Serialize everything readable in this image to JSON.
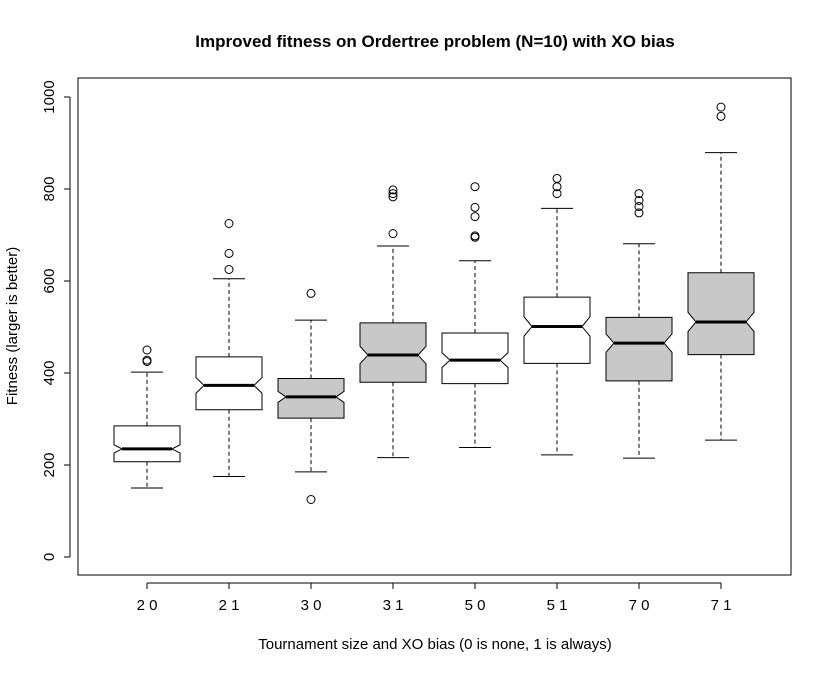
{
  "chart_data": {
    "type": "box",
    "notched": true,
    "title": "Improved fitness on Ordertree problem (N=10) with XO bias",
    "xlabel": "Tournament size and XO bias (0 is none, 1 is always)",
    "ylabel": "Fitness (larger is better)",
    "ylim": [
      0,
      1000
    ],
    "yticks": [
      0,
      200,
      400,
      600,
      800,
      1000
    ],
    "grid": false,
    "categories": [
      "2 0",
      "2 1",
      "3 0",
      "3 1",
      "5 0",
      "5 1",
      "7 0",
      "7 1"
    ],
    "fill_colors": [
      "#ffffff",
      "#ffffff",
      "#c8c8c8",
      "#c8c8c8",
      "#ffffff",
      "#ffffff",
      "#c8c8c8",
      "#c8c8c8"
    ],
    "series": [
      {
        "whisker_low": 150,
        "q1": 207,
        "median": 235,
        "q3": 285,
        "whisker_high": 402,
        "notch_low": 226,
        "notch_high": 244,
        "outliers": [
          425,
          428,
          450
        ]
      },
      {
        "whisker_low": 175,
        "q1": 320,
        "median": 373,
        "q3": 435,
        "whisker_high": 605,
        "notch_low": 356,
        "notch_high": 390,
        "outliers": [
          625,
          660,
          725
        ]
      },
      {
        "whisker_low": 185,
        "q1": 302,
        "median": 348,
        "q3": 388,
        "whisker_high": 515,
        "notch_low": 336,
        "notch_high": 360,
        "outliers": [
          125,
          573
        ]
      },
      {
        "whisker_low": 216,
        "q1": 380,
        "median": 439,
        "q3": 509,
        "whisker_high": 676,
        "notch_low": 420,
        "notch_high": 458,
        "outliers": [
          703,
          783,
          790,
          798
        ]
      },
      {
        "whisker_low": 238,
        "q1": 377,
        "median": 428,
        "q3": 487,
        "whisker_high": 644,
        "notch_low": 412,
        "notch_high": 444,
        "outliers": [
          695,
          698,
          740,
          760,
          805
        ]
      },
      {
        "whisker_low": 222,
        "q1": 421,
        "median": 501,
        "q3": 565,
        "whisker_high": 758,
        "notch_low": 480,
        "notch_high": 522,
        "outliers": [
          790,
          805,
          823
        ]
      },
      {
        "whisker_low": 215,
        "q1": 383,
        "median": 465,
        "q3": 521,
        "whisker_high": 681,
        "notch_low": 445,
        "notch_high": 485,
        "outliers": [
          748,
          762,
          775,
          790
        ]
      },
      {
        "whisker_low": 254,
        "q1": 440,
        "median": 511,
        "q3": 618,
        "whisker_high": 879,
        "notch_low": 490,
        "notch_high": 532,
        "outliers": [
          958,
          978
        ]
      }
    ]
  }
}
